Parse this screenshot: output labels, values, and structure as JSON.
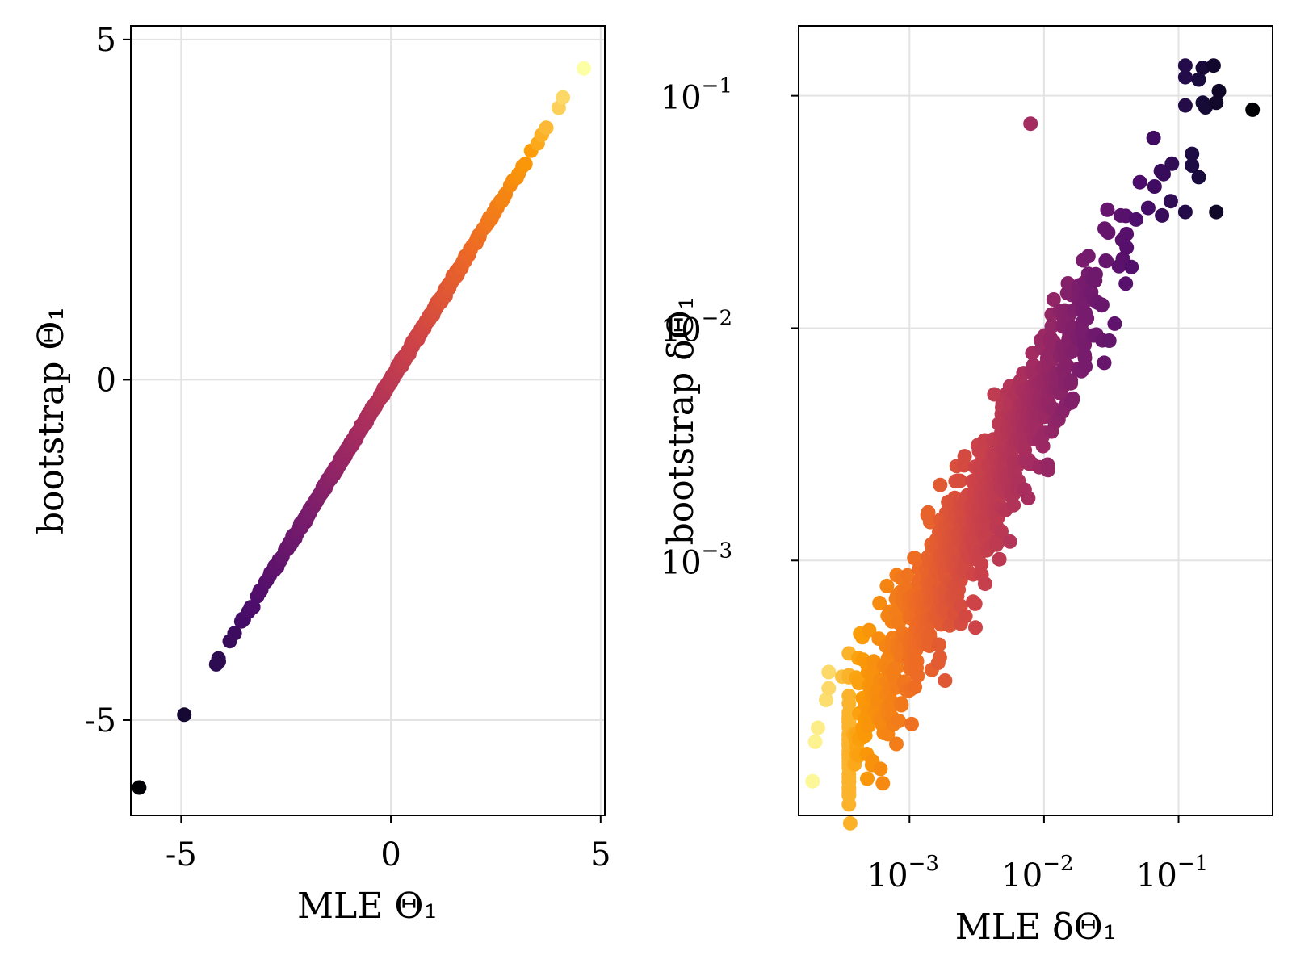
{
  "chart_data": [
    {
      "type": "scatter",
      "title": "",
      "xlabel": "MLE Θ₁",
      "ylabel": "bootstrap Θ₁",
      "x_scale": "linear",
      "y_scale": "linear",
      "xlim": [
        -6.2,
        5.1
      ],
      "ylim": [
        -6.4,
        5.2
      ],
      "xticks": [
        -5,
        0,
        5
      ],
      "xtick_labels": [
        "-5",
        "0",
        "5"
      ],
      "yticks": [
        -5,
        0,
        5
      ],
      "ytick_labels": [
        "-5",
        "0",
        "5"
      ],
      "grid": true,
      "legend": "none",
      "colormap": "inferno",
      "points_description": "about 1000 points lying on the identity line y = x, colored by value (dark for low, yellow for high)",
      "x_range_of_points": [
        -6.0,
        4.6
      ],
      "sample_points": [
        {
          "x": -6.0,
          "y": -5.95
        },
        {
          "x": -5.0,
          "y": -4.95
        },
        {
          "x": -4.0,
          "y": -4.0
        },
        {
          "x": -3.0,
          "y": -3.0
        },
        {
          "x": -2.0,
          "y": -2.0
        },
        {
          "x": -1.0,
          "y": -1.0
        },
        {
          "x": 0.0,
          "y": 0.0
        },
        {
          "x": 1.0,
          "y": 1.0
        },
        {
          "x": 2.0,
          "y": 2.0
        },
        {
          "x": 3.0,
          "y": 3.0
        },
        {
          "x": 4.0,
          "y": 4.05
        },
        {
          "x": 4.6,
          "y": 4.65
        }
      ]
    },
    {
      "type": "scatter",
      "title": "",
      "xlabel": "MLE δΘ₁",
      "ylabel": "bootstrap δΘ₁",
      "x_scale": "log10",
      "y_scale": "log10",
      "xlim": [
        0.00015,
        0.5
      ],
      "ylim": [
        8e-05,
        0.2
      ],
      "xticks": [
        0.001,
        0.01,
        0.1
      ],
      "xtick_labels": [
        {
          "base": "10",
          "exp": "−3"
        },
        {
          "base": "10",
          "exp": "−2"
        },
        {
          "base": "10",
          "exp": "−1"
        }
      ],
      "yticks": [
        0.001,
        0.01,
        0.1
      ],
      "ytick_labels": [
        {
          "base": "10",
          "exp": "−3"
        },
        {
          "base": "10",
          "exp": "−2"
        },
        {
          "base": "10",
          "exp": "−1"
        }
      ],
      "grid": true,
      "legend": "none",
      "colormap": "inferno",
      "points_description": "about 1000 points following roughly y ≈ x on log-log axes, with larger scatter at the high end; color runs from yellow (small δΘ₁) to black (large δΘ₁)",
      "sample_points": [
        {
          "x": 0.00019,
          "y": 0.00011
        },
        {
          "x": 0.0002,
          "y": 0.00017
        },
        {
          "x": 0.00022,
          "y": 0.00025
        },
        {
          "x": 0.0003,
          "y": 0.0003
        },
        {
          "x": 0.0005,
          "y": 0.00045
        },
        {
          "x": 0.0008,
          "y": 0.0005
        },
        {
          "x": 0.001,
          "y": 0.0007
        },
        {
          "x": 0.002,
          "y": 0.0012
        },
        {
          "x": 0.003,
          "y": 0.002
        },
        {
          "x": 0.005,
          "y": 0.003
        },
        {
          "x": 0.01,
          "y": 0.006
        },
        {
          "x": 0.02,
          "y": 0.01
        },
        {
          "x": 0.04,
          "y": 0.02
        },
        {
          "x": 0.07,
          "y": 0.035
        },
        {
          "x": 0.1,
          "y": 0.05
        },
        {
          "x": 0.1,
          "y": 0.13
        },
        {
          "x": 0.15,
          "y": 0.07
        },
        {
          "x": 0.2,
          "y": 0.13
        },
        {
          "x": 0.35,
          "y": 0.085
        },
        {
          "x": 0.18,
          "y": 0.03
        }
      ]
    }
  ]
}
